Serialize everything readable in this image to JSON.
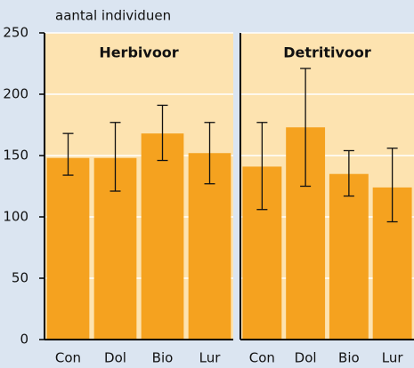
{
  "chart_data": [
    {
      "type": "bar",
      "title": "Herbivoor",
      "y_label": "aantal individuen",
      "categories": [
        "Con",
        "Dol",
        "Bio",
        "Lur"
      ],
      "values": [
        148,
        148,
        168,
        152
      ],
      "err_low": [
        134,
        121,
        146,
        127
      ],
      "err_high": [
        168,
        177,
        191,
        177
      ],
      "color": "#f5a21f",
      "ylim": [
        0,
        250
      ],
      "yticks": [
        0,
        50,
        100,
        150,
        200,
        250
      ],
      "grid": true
    },
    {
      "type": "bar",
      "title": "Detritivoor",
      "categories": [
        "Con",
        "Dol",
        "Bio",
        "Lur"
      ],
      "values": [
        141,
        173,
        135,
        124
      ],
      "err_low": [
        106,
        125,
        117,
        96
      ],
      "err_high": [
        177,
        221,
        154,
        156
      ],
      "color": "#f5a21f",
      "ylim": [
        0,
        250
      ],
      "yticks": [
        0,
        50,
        100,
        150,
        200,
        250
      ],
      "grid": true
    }
  ]
}
